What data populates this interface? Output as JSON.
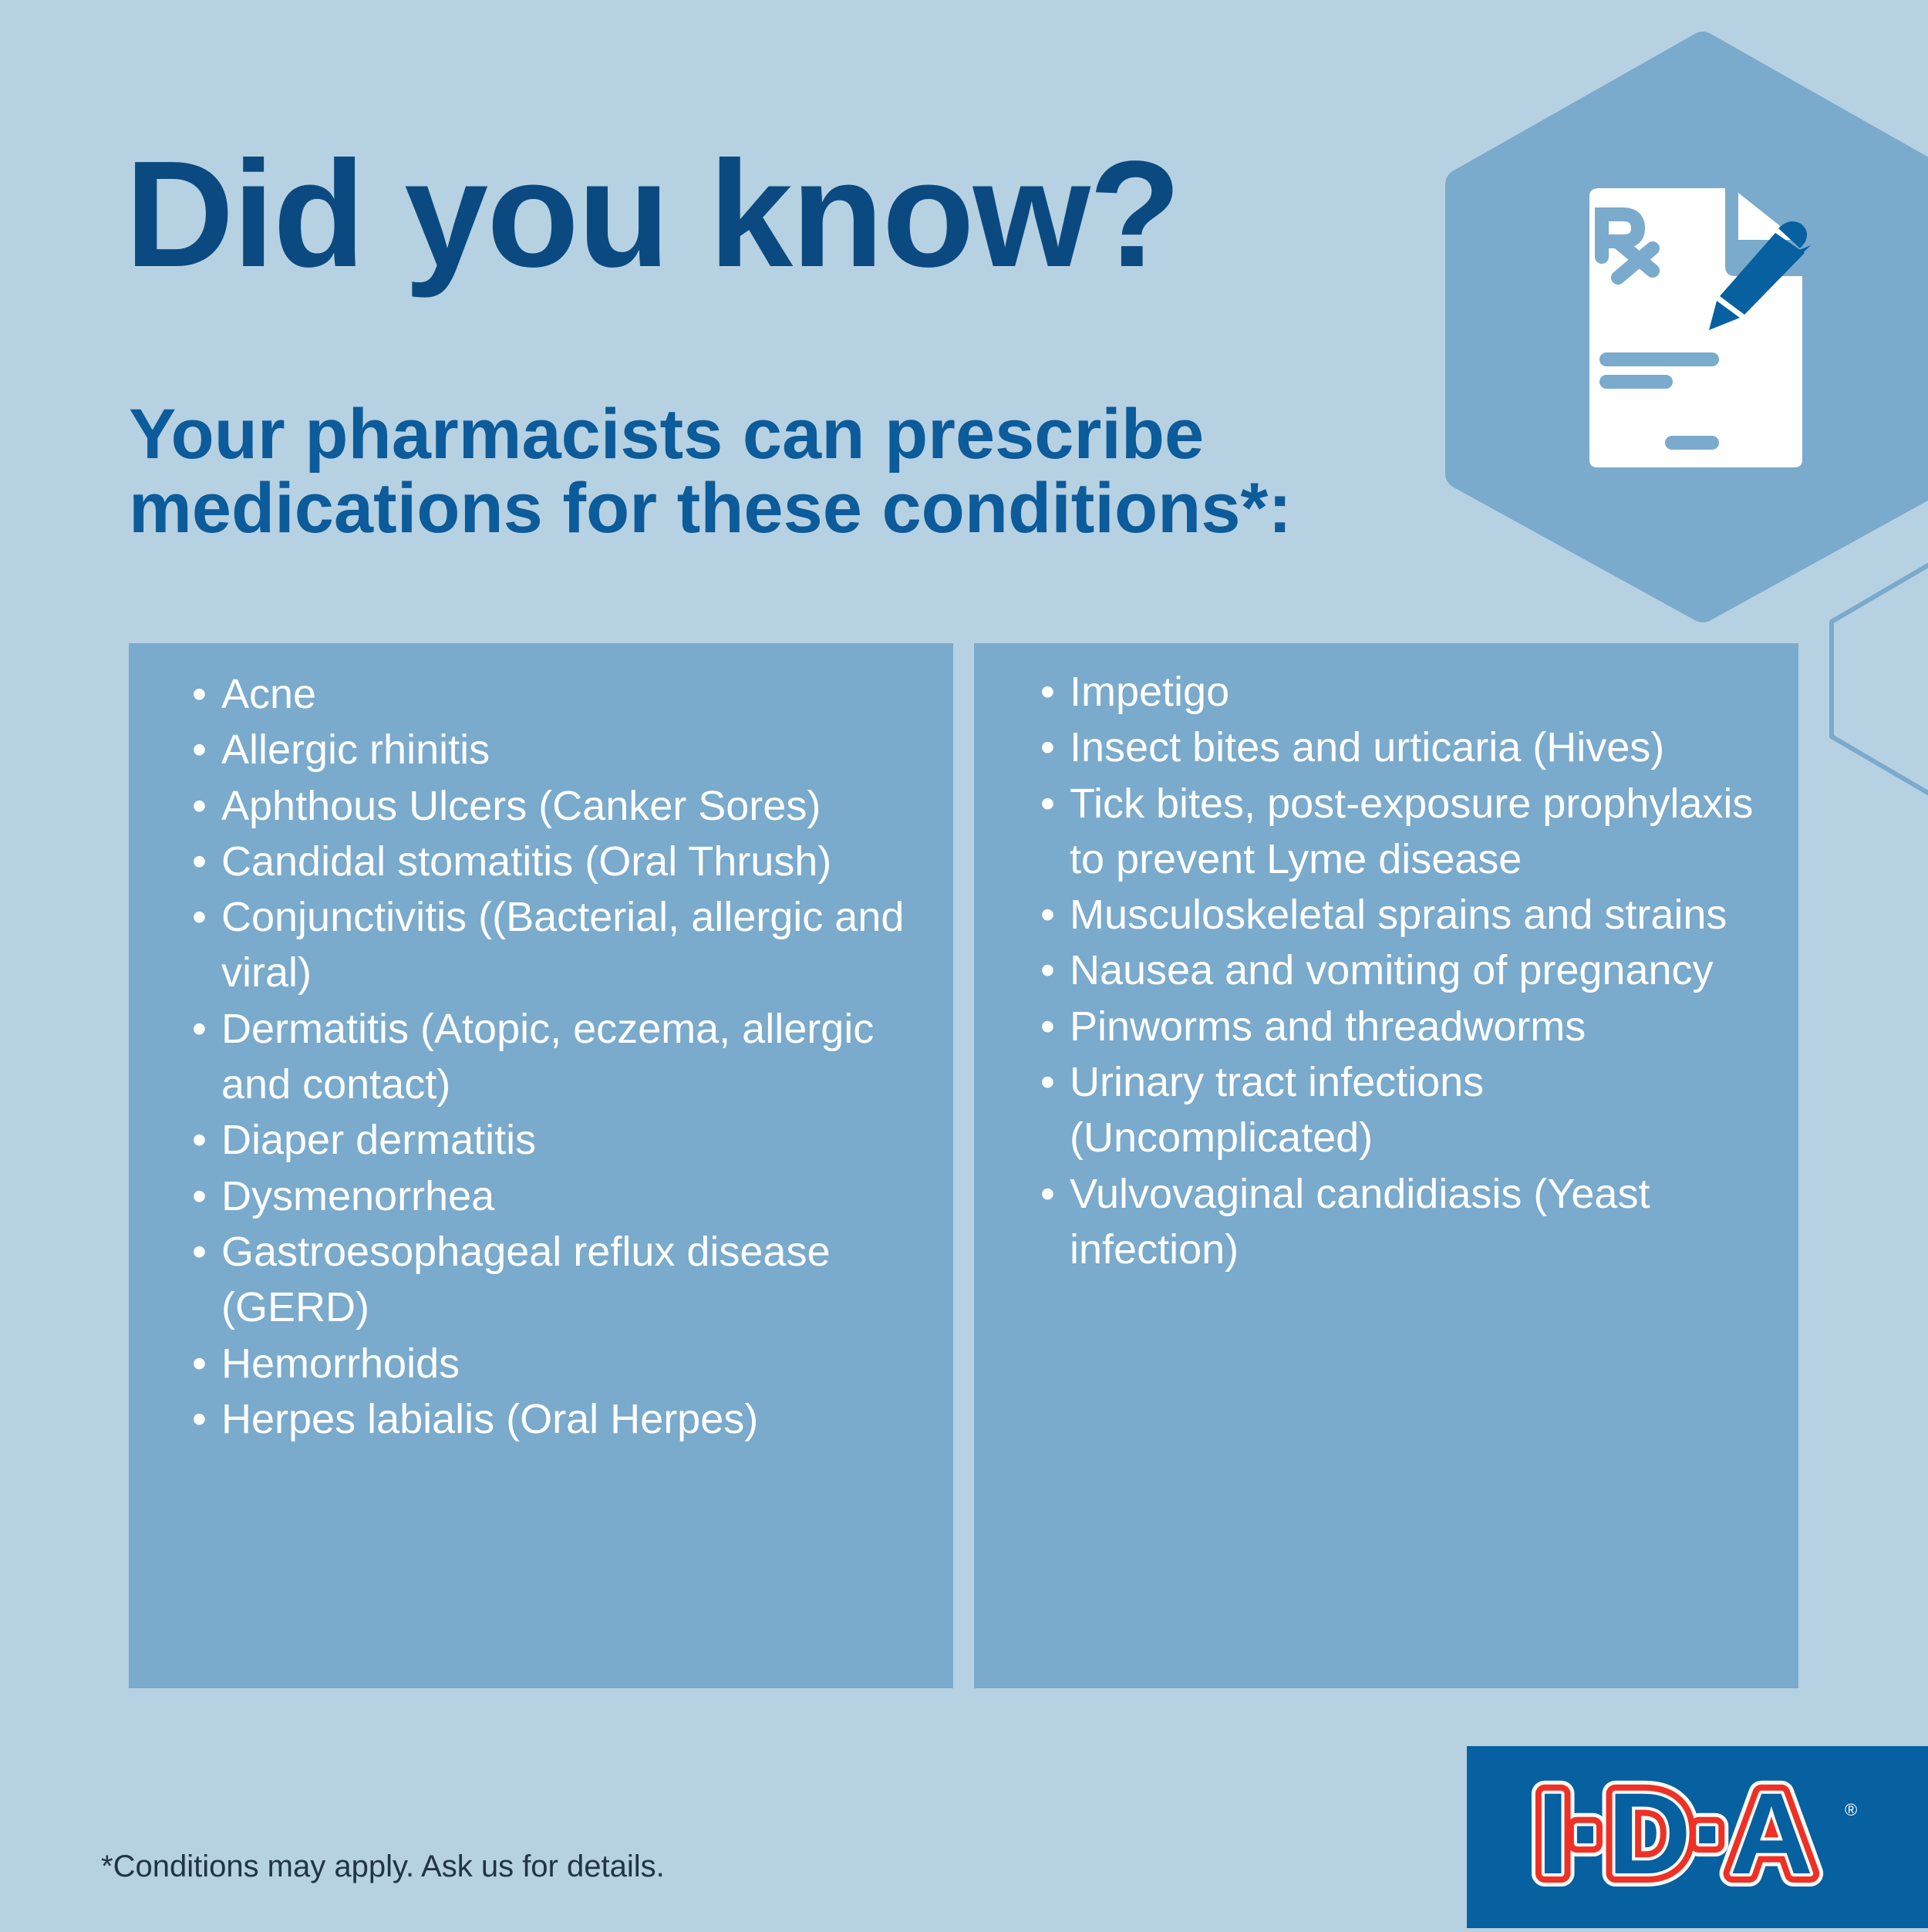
{
  "title": "Did you know?",
  "subtitle": "Your pharmacists can prescribe medications for these conditions*:",
  "left_conditions": [
    "Acne",
    "Allergic rhinitis",
    "Aphthous Ulcers (Canker Sores)",
    "Candidal stomatitis (Oral Thrush)",
    "Conjunctivitis ((Bacterial, allergic and viral)",
    "Dermatitis (Atopic, eczema, allergic and contact)",
    "Diaper dermatitis",
    "Dysmenorrhea",
    "Gastroesophageal reflux disease (GERD)",
    "Hemorrhoids",
    "Herpes labialis (Oral Herpes)"
  ],
  "right_conditions": [
    "Impetigo",
    "Insect bites and urticaria (Hives)",
    "Tick bites, post-exposure prophylaxis to prevent Lyme disease",
    "Musculoskeletal sprains and strains",
    "Nausea and vomiting of pregnancy",
    "Pinworms and threadworms",
    "Urinary tract infections (Uncomplicated)",
    "Vulvovaginal candidiasis (Yeast infection)"
  ],
  "bullet": "•",
  "footnote": "*Conditions may apply. Ask us for details.",
  "logo": {
    "text": "I·D·A®",
    "colors": {
      "red": "#ee3124",
      "blue": "#0760a0",
      "white": "#ffffff"
    }
  },
  "icon": "prescription-document-with-pen-icon",
  "colors": {
    "background": "#b6d1e2",
    "panel": "#7aaacc",
    "title": "#0b4a80",
    "subtitle": "#0c5b9a",
    "logo_bg": "#0760a0"
  }
}
